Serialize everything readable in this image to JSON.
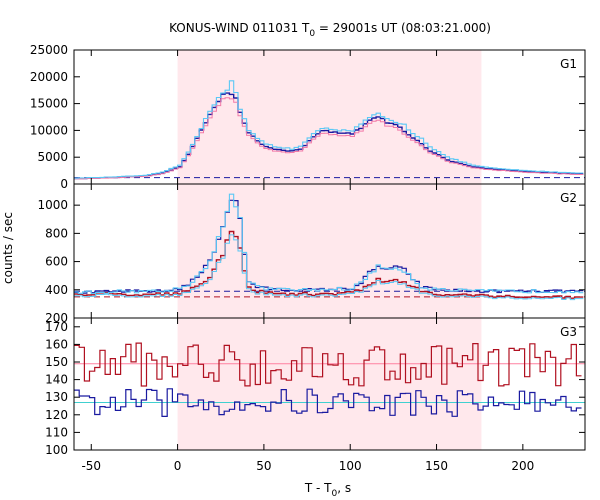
{
  "title": {
    "instrument": "KONUS-WIND 011031 T",
    "sub": "0",
    "rest": " = 29001s UT (08:03:21.000)"
  },
  "xlabel": {
    "pre": "T - T",
    "sub": "0",
    "post": ", s"
  },
  "ylabel": "counts / sec",
  "colors": {
    "shade": "#ffe8ec",
    "light_blue": "#5bc8f5",
    "dark_blue": "#1a1aa0",
    "pink": "#f27aa8",
    "dark_red": "#b01020",
    "cyan_fit": "#40d0d0",
    "pink_fit": "#ff80a0"
  },
  "chart_data": {
    "type": "line",
    "x_range": [
      -60,
      236
    ],
    "x_ticks": [
      -50,
      0,
      50,
      100,
      150,
      200
    ],
    "x_tick_labels": [
      "-50",
      "0",
      "50",
      "100",
      "150",
      "200"
    ],
    "shaded_interval": [
      0,
      176
    ],
    "panels": [
      {
        "label": "G1",
        "ylim": [
          0,
          25000
        ],
        "y_ticks": [
          0,
          5000,
          10000,
          15000,
          20000,
          25000
        ],
        "y_tick_labels": [
          "0",
          "5000",
          "10000",
          "15000",
          "20000",
          "25000"
        ],
        "background_level": 1200,
        "profile": {
          "x": [
            -60,
            -40,
            -20,
            -10,
            0,
            5,
            10,
            15,
            20,
            25,
            28,
            30,
            32,
            35,
            40,
            45,
            50,
            55,
            60,
            65,
            70,
            75,
            80,
            85,
            90,
            95,
            100,
            105,
            110,
            115,
            120,
            125,
            130,
            135,
            140,
            145,
            150,
            155,
            160,
            170,
            180,
            200,
            220,
            236
          ],
          "y_light": [
            1100,
            1300,
            1600,
            2200,
            3500,
            6000,
            9000,
            12000,
            15000,
            17200,
            17800,
            19200,
            17500,
            14000,
            10000,
            8500,
            7500,
            7000,
            6800,
            6600,
            7000,
            8500,
            10000,
            10500,
            10200,
            10000,
            10000,
            11000,
            12500,
            13000,
            12000,
            11500,
            11000,
            9500,
            8500,
            7000,
            6000,
            5000,
            4500,
            3500,
            3000,
            2500,
            2200,
            2000
          ],
          "y_dark": [
            1000,
            1200,
            1500,
            2000,
            3200,
            5500,
            8500,
            11500,
            14500,
            16800,
            17200,
            17000,
            16500,
            13500,
            9500,
            8000,
            7000,
            6500,
            6300,
            6200,
            6600,
            8000,
            9500,
            10000,
            9600,
            9400,
            9500,
            10500,
            12000,
            12500,
            11500,
            11000,
            10000,
            8500,
            7500,
            6200,
            5500,
            4500,
            4000,
            3200,
            2800,
            2300,
            2000,
            1800
          ]
        }
      },
      {
        "label": "G2",
        "ylim": [
          200,
          1150
        ],
        "y_ticks": [
          200,
          400,
          600,
          800,
          1000
        ],
        "y_tick_labels": [
          "200",
          "400",
          "600",
          "800",
          "1000"
        ],
        "background_level_blue": 390,
        "background_level_red": 350,
        "profile": {
          "x": [
            -60,
            -30,
            -10,
            0,
            5,
            10,
            15,
            20,
            25,
            28,
            30,
            32,
            35,
            38,
            40,
            45,
            50,
            60,
            80,
            100,
            105,
            110,
            115,
            120,
            125,
            130,
            135,
            140,
            150,
            175,
            200,
            236
          ],
          "y_light": [
            380,
            390,
            390,
            410,
            440,
            490,
            560,
            680,
            850,
            980,
            1050,
            1040,
            900,
            600,
            460,
            420,
            410,
            400,
            400,
            410,
            450,
            520,
            560,
            550,
            560,
            540,
            480,
            420,
            400,
            390,
            390,
            390
          ],
          "y_dark": [
            370,
            370,
            370,
            380,
            400,
            420,
            460,
            540,
            650,
            760,
            790,
            780,
            700,
            520,
            420,
            390,
            380,
            370,
            370,
            380,
            400,
            440,
            470,
            460,
            470,
            450,
            420,
            390,
            370,
            360,
            350,
            350
          ]
        }
      },
      {
        "label": "G3",
        "ylim": [
          100,
          175
        ],
        "y_ticks": [
          100,
          110,
          120,
          130,
          140,
          150,
          160,
          170
        ],
        "y_tick_labels": [
          "100",
          "110",
          "120",
          "130",
          "140",
          "150",
          "160",
          "170"
        ],
        "mean_red": 149,
        "mean_blue": 127,
        "noise_red": 8,
        "noise_blue": 5
      }
    ]
  }
}
